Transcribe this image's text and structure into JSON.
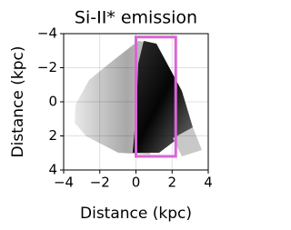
{
  "chart_data": {
    "type": "image",
    "title": "Si-II* emission",
    "x_label": "Distance (kpc)",
    "y_label": "Distance (kpc)",
    "xlim": [
      -4,
      4
    ],
    "ylim": [
      -4,
      4
    ],
    "y_inverted": true,
    "xticks": [
      {
        "value": -4,
        "label": "−4"
      },
      {
        "value": -2,
        "label": "−2"
      },
      0,
      2,
      4
    ],
    "yticks": [
      {
        "value": -4,
        "label": "−4"
      },
      {
        "value": -2,
        "label": "−2"
      },
      0,
      2,
      4
    ],
    "grid": true,
    "highlight_box": {
      "x": [
        0,
        2.2
      ],
      "y": [
        -3.8,
        3.2
      ],
      "color": "#d966d6"
    }
  }
}
